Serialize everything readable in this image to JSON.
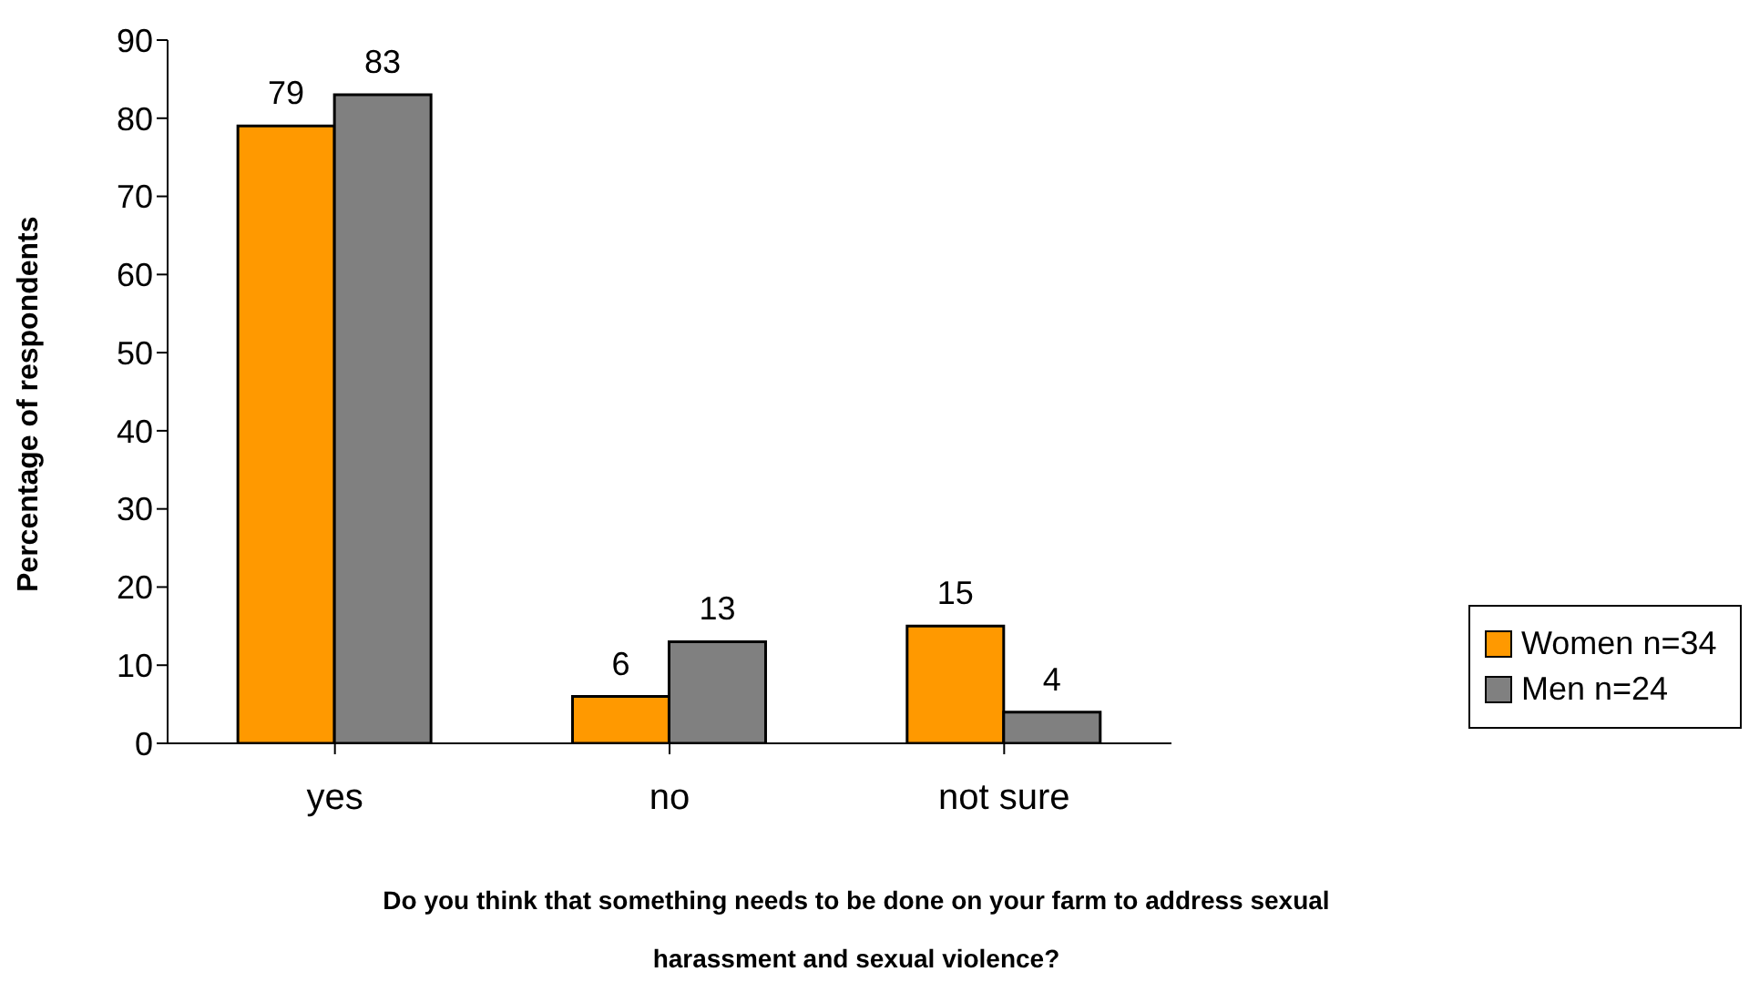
{
  "chart_data": {
    "type": "bar",
    "xlabel": "Do you think that something needs to be done on your farm to address sexual harassment and sexual violence?",
    "ylabel": "Percentage of respondents",
    "categories": [
      "yes",
      "no",
      "not sure"
    ],
    "series": [
      {
        "name": "Women n=34",
        "color": "#ff9900",
        "values": [
          79,
          6,
          15
        ]
      },
      {
        "name": "Men n=24",
        "color": "#808080",
        "values": [
          83,
          13,
          4
        ]
      }
    ],
    "ylim": [
      0,
      90
    ],
    "yticks": [
      0,
      10,
      20,
      30,
      40,
      50,
      60,
      70,
      80,
      90
    ],
    "data_labels": true,
    "legend": "right",
    "grid": false
  }
}
